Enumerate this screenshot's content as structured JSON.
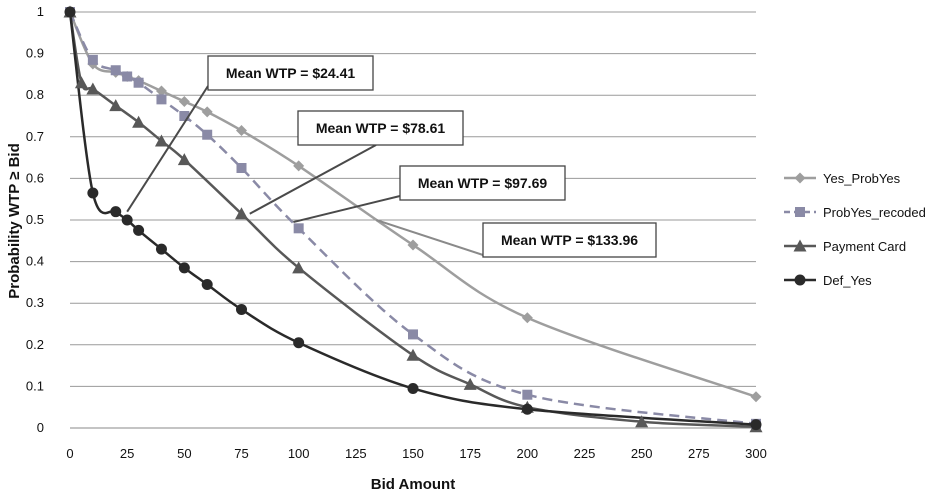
{
  "chart_data": {
    "type": "line",
    "title": "",
    "xlabel": "Bid Amount",
    "ylabel": "Probability WTP ≥ Bid",
    "xlim": [
      0,
      300
    ],
    "ylim": [
      0,
      1
    ],
    "x_ticks": [
      0,
      25,
      50,
      75,
      100,
      125,
      150,
      175,
      200,
      225,
      250,
      275,
      300
    ],
    "y_ticks": [
      0,
      0.1,
      0.2,
      0.3,
      0.4,
      0.5,
      0.6,
      0.7,
      0.8,
      0.9,
      1
    ],
    "y_tick_labels": [
      "0",
      "0.1",
      "0.2",
      "0.3",
      "0.4",
      "0.5",
      "0.6",
      "0.7",
      "0.8",
      "0.9",
      "1"
    ],
    "grid": "horizontal",
    "legend_position": "right",
    "series": [
      {
        "name": "Yes_ProbYes",
        "color": "#9e9e9e",
        "marker": "diamond",
        "line": "solid",
        "points": [
          [
            0,
            1
          ],
          [
            10,
            0.875
          ],
          [
            20,
            0.855
          ],
          [
            25,
            0.845
          ],
          [
            30,
            0.835
          ],
          [
            40,
            0.81
          ],
          [
            50,
            0.785
          ],
          [
            60,
            0.76
          ],
          [
            75,
            0.715
          ],
          [
            100,
            0.63
          ],
          [
            150,
            0.44
          ],
          [
            200,
            0.265
          ],
          [
            300,
            0.075
          ]
        ]
      },
      {
        "name": "ProbYes_recoded",
        "color": "#8a8aa6",
        "marker": "square",
        "line": "dashed",
        "points": [
          [
            0,
            1
          ],
          [
            10,
            0.885
          ],
          [
            20,
            0.86
          ],
          [
            25,
            0.845
          ],
          [
            30,
            0.83
          ],
          [
            40,
            0.79
          ],
          [
            50,
            0.75
          ],
          [
            60,
            0.705
          ],
          [
            75,
            0.625
          ],
          [
            100,
            0.48
          ],
          [
            150,
            0.225
          ],
          [
            200,
            0.08
          ],
          [
            300,
            0.01
          ]
        ]
      },
      {
        "name": "Payment Card",
        "color": "#585858",
        "marker": "triangle",
        "line": "solid",
        "points": [
          [
            0,
            1
          ],
          [
            5,
            0.83
          ],
          [
            10,
            0.815
          ],
          [
            20,
            0.775
          ],
          [
            30,
            0.735
          ],
          [
            40,
            0.69
          ],
          [
            50,
            0.645
          ],
          [
            75,
            0.515
          ],
          [
            100,
            0.385
          ],
          [
            150,
            0.175
          ],
          [
            175,
            0.105
          ],
          [
            200,
            0.05
          ],
          [
            250,
            0.015
          ],
          [
            300,
            0.003
          ]
        ]
      },
      {
        "name": "Def_Yes",
        "color": "#2a2a2a",
        "marker": "circle",
        "line": "solid",
        "points": [
          [
            0,
            1
          ],
          [
            10,
            0.565
          ],
          [
            20,
            0.52
          ],
          [
            25,
            0.5
          ],
          [
            30,
            0.475
          ],
          [
            40,
            0.43
          ],
          [
            50,
            0.385
          ],
          [
            60,
            0.345
          ],
          [
            75,
            0.285
          ],
          [
            100,
            0.205
          ],
          [
            150,
            0.095
          ],
          [
            200,
            0.045
          ],
          [
            300,
            0.008
          ]
        ]
      }
    ],
    "annotations": [
      {
        "text": "Mean WTP = $24.41",
        "target": [
          25,
          0.52
        ]
      },
      {
        "text": "Mean WTP = $78.61",
        "target": [
          78.61,
          0.515
        ]
      },
      {
        "text": "Mean WTP = $97.69",
        "target": [
          97.69,
          0.495
        ]
      },
      {
        "text": "Mean WTP = $133.96",
        "target": [
          133.96,
          0.5
        ]
      }
    ]
  }
}
